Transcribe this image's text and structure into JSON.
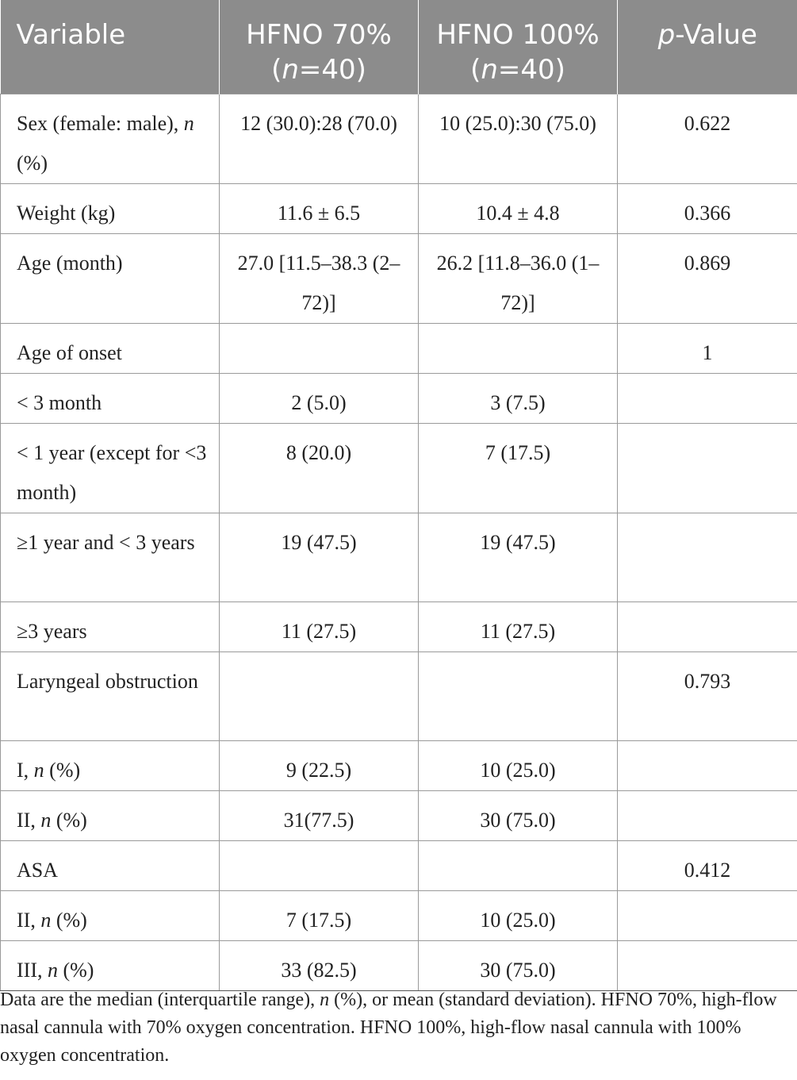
{
  "header": {
    "variable": "Variable",
    "hfno70": "HFNO 70%",
    "hfno70_n": "(n=40)",
    "hfno100": "HFNO 100%",
    "hfno100_n": "(n=40)",
    "pvalue": "p-Value"
  },
  "rows": [
    {
      "label": "Sex (female: male), n (%)",
      "hfno70": "12 (30.0):28 (70.0)",
      "hfno100": "10 (25.0):30 (75.0)",
      "p": "0.622"
    },
    {
      "label": "Weight (kg)",
      "hfno70": "11.6 ± 6.5",
      "hfno100": "10.4 ± 4.8",
      "p": "0.366"
    },
    {
      "label": "Age (month)",
      "hfno70": "27.0 [11.5–38.3 (2–72)]",
      "hfno100": "26.2 [11.8–36.0 (1–72)]",
      "p": "0.869"
    },
    {
      "label": "Age of onset",
      "hfno70": "",
      "hfno100": "",
      "p": "1"
    },
    {
      "label": "< 3 month",
      "hfno70": "2 (5.0)",
      "hfno100": "3 (7.5)",
      "p": ""
    },
    {
      "label": "< 1 year (except for <3 month)",
      "hfno70": "8 (20.0)",
      "hfno100": "7 (17.5)",
      "p": ""
    },
    {
      "label": "≥1 year and < 3 years",
      "hfno70": "19 (47.5)",
      "hfno100": "19 (47.5)",
      "p": ""
    },
    {
      "label": "≥3 years",
      "hfno70": "11 (27.5)",
      "hfno100": "11 (27.5)",
      "p": ""
    },
    {
      "label": "Laryngeal obstruction",
      "hfno70": "",
      "hfno100": "",
      "p": "0.793"
    },
    {
      "label": "I, n (%)",
      "hfno70": "9 (22.5)",
      "hfno100": "10 (25.0)",
      "p": ""
    },
    {
      "label": "II, n (%)",
      "hfno70": "31(77.5)",
      "hfno100": "30 (75.0)",
      "p": ""
    },
    {
      "label": "ASA",
      "hfno70": "",
      "hfno100": "",
      "p": "0.412"
    },
    {
      "label": "II, n (%)",
      "hfno70": "7 (17.5)",
      "hfno100": "10 (25.0)",
      "p": ""
    },
    {
      "label": "III, n (%)",
      "hfno70": "33 (82.5)",
      "hfno100": "30 (75.0)",
      "p": ""
    }
  ],
  "footnote": "Data are the median (interquartile range), n (%), or mean (standard deviation). HFNO 70%, high-flow nasal cannula with 70% oxygen concentration. HFNO 100%, high-flow nasal cannula with 100% oxygen concentration."
}
